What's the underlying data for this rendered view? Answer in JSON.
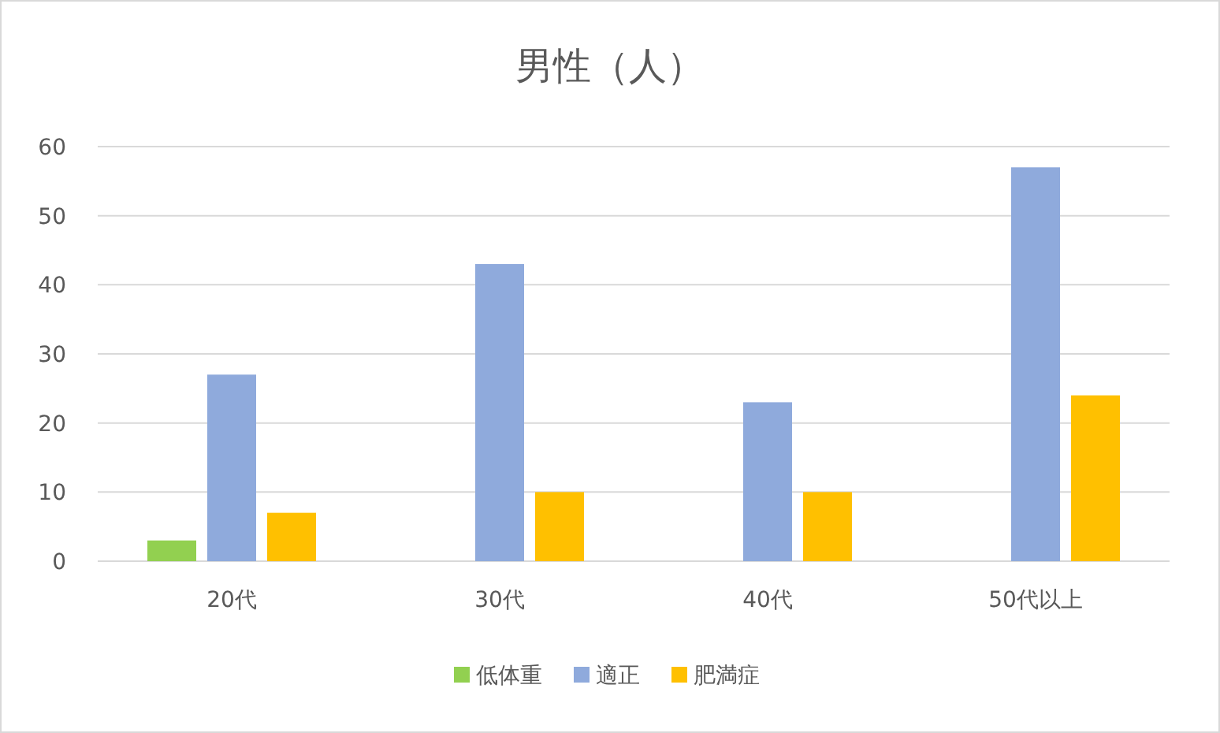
{
  "chart_data": {
    "type": "bar",
    "title": "男性（人）",
    "categories": [
      "20代",
      "30代",
      "40代",
      "50代以上"
    ],
    "series": [
      {
        "name": "低体重",
        "color": "#92d050",
        "values": [
          3,
          0,
          0,
          0
        ]
      },
      {
        "name": "適正",
        "color": "#8faadc",
        "values": [
          27,
          43,
          23,
          57
        ]
      },
      {
        "name": "肥満症",
        "color": "#ffc000",
        "values": [
          7,
          10,
          10,
          24
        ]
      }
    ],
    "ylim": [
      0,
      60
    ],
    "yticks": [
      0,
      10,
      20,
      30,
      40,
      50,
      60
    ],
    "grid": "y",
    "legend": "bottom"
  }
}
